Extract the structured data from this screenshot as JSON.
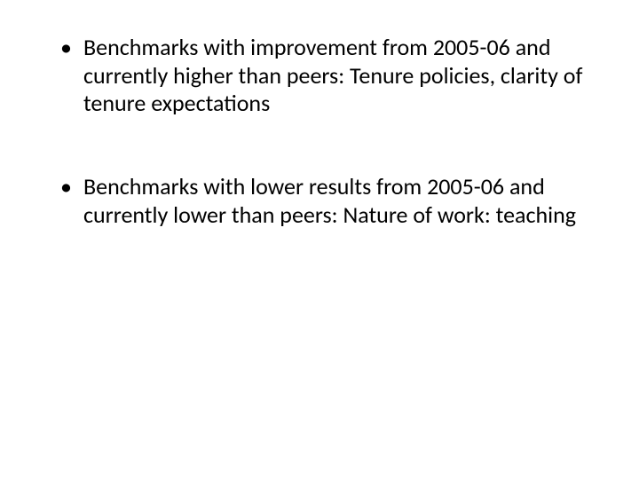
{
  "slide": {
    "bullets": [
      {
        "text": "Benchmarks with improvement from 2005-06 and currently higher than peers: Tenure policies, clarity of tenure expectations"
      },
      {
        "text": "Benchmarks with lower results from 2005-06 and currently lower than peers: Nature of work: teaching"
      }
    ],
    "text_color": "#000000",
    "background_color": "#ffffff",
    "font_size": 26,
    "font_family": "Calibri"
  }
}
